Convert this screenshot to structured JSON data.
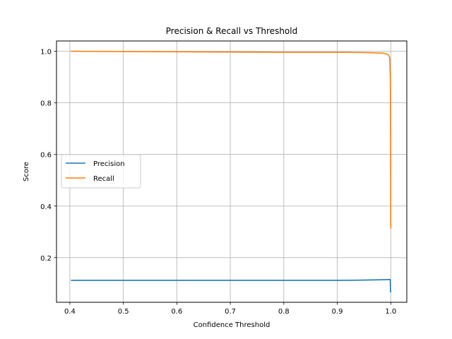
{
  "chart_data": {
    "type": "line",
    "title": "Precision & Recall vs Threshold",
    "xlabel": "Confidence Threshold",
    "ylabel": "Score",
    "xlim": [
      0.375,
      1.03
    ],
    "ylim": [
      0.027,
      1.04
    ],
    "xticks": [
      0.4,
      0.5,
      0.6,
      0.7,
      0.8,
      0.9,
      1.0
    ],
    "xtick_labels": [
      "0.4",
      "0.5",
      "0.6",
      "0.7",
      "0.8",
      "0.9",
      "1.0"
    ],
    "yticks": [
      0.2,
      0.4,
      0.6,
      0.8,
      1.0
    ],
    "ytick_labels": [
      "0.2",
      "0.4",
      "0.6",
      "0.8",
      "1.0"
    ],
    "grid": true,
    "legend_position": "center-left",
    "series": [
      {
        "name": "Precision",
        "color": "#1f77b4",
        "x": [
          0.403,
          0.5,
          0.6,
          0.7,
          0.8,
          0.9,
          0.95,
          0.98,
          0.995,
          0.999,
          0.9995,
          1.0
        ],
        "y": [
          0.112,
          0.112,
          0.112,
          0.112,
          0.112,
          0.112,
          0.113,
          0.114,
          0.115,
          0.115,
          0.068,
          0.068
        ]
      },
      {
        "name": "Recall",
        "color": "#ff7f0e",
        "x": [
          0.403,
          0.5,
          0.6,
          0.7,
          0.8,
          0.9,
          0.95,
          0.97,
          0.985,
          0.992,
          0.996,
          0.998,
          0.9992,
          0.9998,
          1.0
        ],
        "y": [
          1.0,
          0.999,
          0.998,
          0.997,
          0.996,
          0.996,
          0.995,
          0.994,
          0.993,
          0.99,
          0.985,
          0.975,
          0.9,
          0.6,
          0.315
        ]
      }
    ]
  }
}
